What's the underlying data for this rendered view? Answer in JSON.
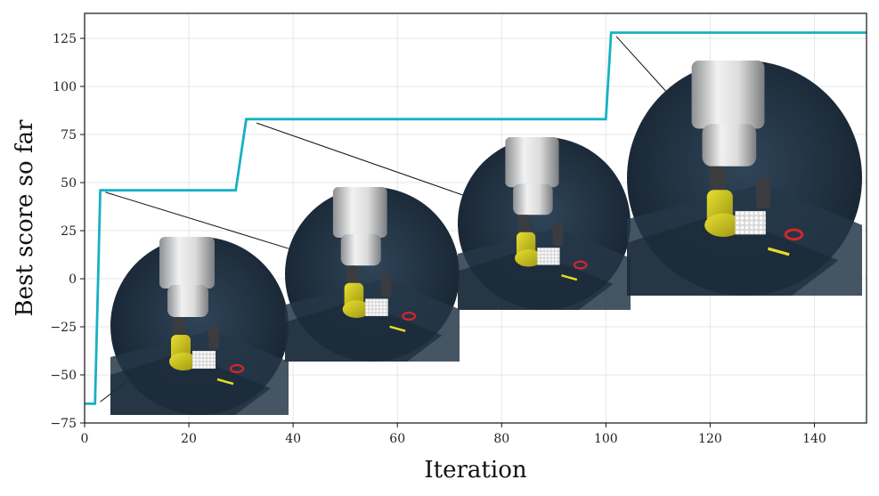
{
  "chart_data": {
    "type": "line",
    "title": "",
    "xlabel": "Iteration",
    "ylabel": "Best score so far",
    "xlim": [
      0,
      150
    ],
    "ylim": [
      -75,
      138
    ],
    "xticks": [
      "0",
      "20",
      "40",
      "60",
      "80",
      "100",
      "120",
      "140"
    ],
    "xtick_values": [
      0,
      20,
      40,
      60,
      80,
      100,
      120,
      140
    ],
    "yticks": [
      "−75",
      "−50",
      "−25",
      "0",
      "25",
      "50",
      "75",
      "100",
      "125"
    ],
    "ytick_values": [
      -75,
      -50,
      -25,
      0,
      25,
      50,
      75,
      100,
      125
    ],
    "grid": true,
    "series": [
      {
        "color": "#17b0c4",
        "points": [
          [
            0,
            -65
          ],
          [
            2,
            -65
          ],
          [
            3,
            46
          ],
          [
            29,
            46
          ],
          [
            31,
            83
          ],
          [
            100,
            83
          ],
          [
            101,
            128
          ],
          [
            150,
            128
          ]
        ]
      }
    ],
    "insets": [
      {
        "name": "inset-1",
        "anchor": [
          3,
          -64
        ],
        "image": "robot-gripper-scene-1"
      },
      {
        "name": "inset-2",
        "anchor": [
          4,
          45
        ],
        "image": "robot-gripper-scene-2"
      },
      {
        "name": "inset-3",
        "anchor": [
          33,
          81
        ],
        "image": "robot-gripper-scene-3"
      },
      {
        "name": "inset-4",
        "anchor": [
          102,
          126
        ],
        "image": "robot-gripper-scene-4"
      }
    ]
  }
}
